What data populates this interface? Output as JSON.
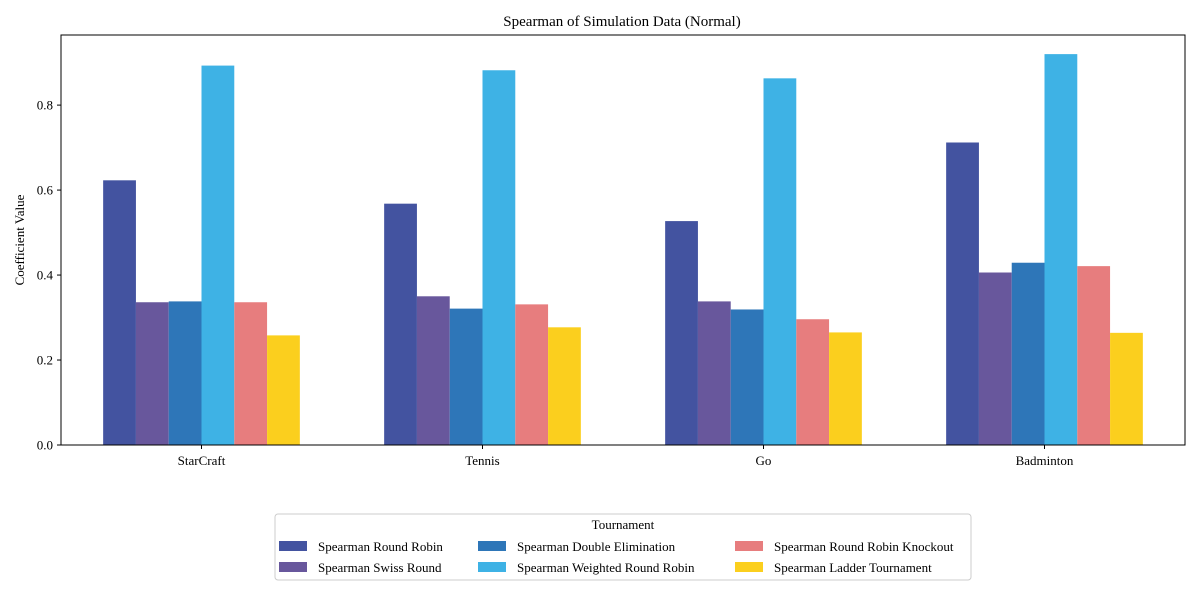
{
  "chart_data": {
    "type": "bar",
    "title": "Spearman of Simulation Data (Normal)",
    "xlabel": "",
    "ylabel": "Coefficient Value",
    "categories": [
      "StarCraft",
      "Tennis",
      "Go",
      "Badminton"
    ],
    "ylim": [
      0,
      0.965
    ],
    "yticks": [
      0.0,
      0.2,
      0.4,
      0.6,
      0.8
    ],
    "ytick_labels": [
      "0.0",
      "0.2",
      "0.4",
      "0.6",
      "0.8"
    ],
    "grid": false,
    "legend": {
      "title": "Tournament",
      "placement": "bottom-center",
      "columns": 3
    },
    "series": [
      {
        "name": "Spearman Round Robin",
        "color": "#4353a0",
        "values": [
          0.623,
          0.568,
          0.527,
          0.712
        ]
      },
      {
        "name": "Spearman Swiss Round",
        "color": "#68579c",
        "values": [
          0.336,
          0.35,
          0.338,
          0.406
        ]
      },
      {
        "name": "Spearman Double Elimination",
        "color": "#2e76b8",
        "values": [
          0.338,
          0.321,
          0.319,
          0.429
        ]
      },
      {
        "name": "Spearman Weighted Round Robin",
        "color": "#3eb2e5",
        "values": [
          0.893,
          0.882,
          0.863,
          0.92
        ]
      },
      {
        "name": "Spearman Round Robin Knockout",
        "color": "#e77d7e",
        "values": [
          0.336,
          0.331,
          0.296,
          0.421
        ]
      },
      {
        "name": "Spearman Ladder Tournament",
        "color": "#fbcf1e",
        "values": [
          0.258,
          0.277,
          0.265,
          0.264
        ]
      }
    ]
  }
}
